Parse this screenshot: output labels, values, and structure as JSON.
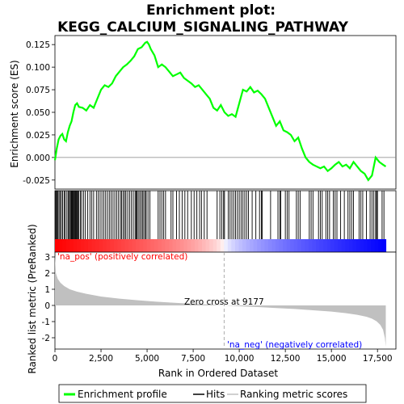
{
  "chart_data": {
    "type": "line",
    "title_line1": "Enrichment plot:",
    "title_line2": "KEGG_CALCIUM_SIGNALING_PATHWAY",
    "top_panel": {
      "ylabel": "Enrichment score (ES)",
      "ylim": [
        -0.035,
        0.135
      ],
      "yticks": [
        -0.025,
        0.0,
        0.025,
        0.05,
        0.075,
        0.1,
        0.125
      ],
      "ytick_labels": [
        "-0.025",
        "0.000",
        "0.025",
        "0.050",
        "0.075",
        "0.100",
        "0.125"
      ],
      "series": [
        {
          "name": "Enrichment profile",
          "color": "#00ff00",
          "x": [
            0,
            100,
            200,
            300,
            400,
            500,
            600,
            700,
            800,
            900,
            1000,
            1100,
            1200,
            1300,
            1500,
            1700,
            1900,
            2100,
            2300,
            2500,
            2700,
            2900,
            3100,
            3300,
            3500,
            3700,
            3900,
            4100,
            4300,
            4500,
            4700,
            4900,
            5000,
            5100,
            5200,
            5400,
            5600,
            5800,
            6000,
            6200,
            6400,
            6600,
            6800,
            7000,
            7200,
            7400,
            7600,
            7800,
            8000,
            8200,
            8400,
            8600,
            8800,
            9000,
            9200,
            9400,
            9600,
            9800,
            10000,
            10200,
            10400,
            10600,
            10800,
            11000,
            11200,
            11400,
            11600,
            11800,
            12000,
            12200,
            12400,
            12600,
            12800,
            13000,
            13200,
            13400,
            13600,
            13800,
            14000,
            14200,
            14400,
            14600,
            14800,
            15000,
            15200,
            15400,
            15600,
            15800,
            16000,
            16200,
            16400,
            16600,
            16800,
            17000,
            17200,
            17400,
            17600,
            17800,
            17950
          ],
          "y": [
            -0.003,
            0.01,
            0.02,
            0.024,
            0.026,
            0.02,
            0.018,
            0.028,
            0.035,
            0.04,
            0.05,
            0.058,
            0.06,
            0.056,
            0.055,
            0.052,
            0.058,
            0.055,
            0.065,
            0.075,
            0.08,
            0.078,
            0.082,
            0.09,
            0.095,
            0.1,
            0.103,
            0.107,
            0.112,
            0.12,
            0.122,
            0.127,
            0.128,
            0.125,
            0.12,
            0.113,
            0.1,
            0.103,
            0.1,
            0.095,
            0.09,
            0.092,
            0.094,
            0.088,
            0.085,
            0.082,
            0.078,
            0.08,
            0.075,
            0.07,
            0.065,
            0.055,
            0.052,
            0.058,
            0.05,
            0.046,
            0.048,
            0.045,
            0.06,
            0.075,
            0.073,
            0.078,
            0.072,
            0.074,
            0.07,
            0.065,
            0.055,
            0.045,
            0.035,
            0.04,
            0.03,
            0.028,
            0.025,
            0.018,
            0.022,
            0.01,
            0.0,
            -0.005,
            -0.008,
            -0.01,
            -0.012,
            -0.01,
            -0.015,
            -0.012,
            -0.008,
            -0.005,
            -0.01,
            -0.008,
            -0.012,
            -0.005,
            -0.01,
            -0.015,
            -0.018,
            -0.025,
            -0.02,
            0.0,
            -0.005,
            -0.008,
            -0.01
          ]
        }
      ]
    },
    "hits_panel": {
      "legend_name": "Hits",
      "hit_positions": [
        20,
        60,
        110,
        160,
        220,
        280,
        350,
        420,
        500,
        560,
        650,
        720,
        780,
        830,
        880,
        920,
        960,
        1000,
        1040,
        1080,
        1120,
        1160,
        1200,
        1250,
        1300,
        1380,
        1450,
        1550,
        1650,
        1780,
        1900,
        2000,
        2100,
        2250,
        2350,
        2450,
        2550,
        2650,
        2750,
        2850,
        2950,
        3050,
        3150,
        3250,
        3350,
        3450,
        3550,
        3620,
        3700,
        3780,
        3850,
        3950,
        4050,
        4150,
        4250,
        4350,
        4400,
        4450,
        4520,
        4600,
        4680,
        4750,
        4820,
        4900,
        4950,
        5050,
        5150,
        5600,
        5700,
        5800,
        5900,
        6000,
        6300,
        6400,
        6600,
        6750,
        6900,
        7050,
        7200,
        7400,
        7550,
        7700,
        7850,
        7950,
        8100,
        8250,
        8800,
        8950,
        9050,
        9150,
        9200,
        9400,
        9500,
        9600,
        9700,
        9800,
        9900,
        10000,
        10100,
        10200,
        10300,
        10400,
        10500,
        10700,
        10900,
        11100,
        11200,
        11250,
        11700,
        12100,
        12200,
        12250,
        12500,
        12600,
        12700,
        13100,
        13200,
        13300,
        13800,
        13900,
        14000,
        14300,
        14400,
        14500,
        14700,
        14800,
        14900,
        15100,
        15200,
        15300,
        15500,
        15700,
        15900,
        16000,
        16100,
        16200,
        16500,
        16600,
        16700,
        16900,
        17100,
        17200,
        17300,
        17400,
        17450,
        17500,
        17750,
        17850
      ]
    },
    "bottom_panel": {
      "ylabel": "Ranked list metric (PreRanked)",
      "xlabel": "Rank in Ordered Dataset",
      "legend_name": "Ranking metric scores",
      "ylim": [
        -2.7,
        3.3
      ],
      "yticks": [
        -2,
        -1,
        0,
        1,
        2,
        3
      ],
      "ytick_labels": [
        "-2",
        "-1",
        "0",
        "1",
        "2",
        "3"
      ],
      "xlim": [
        0,
        18500
      ],
      "xticks": [
        0,
        2500,
        5000,
        7500,
        10000,
        12500,
        15000,
        17500
      ],
      "xtick_labels": [
        "0",
        "2,500",
        "5,000",
        "7,500",
        "10,000",
        "12,500",
        "15,000",
        "17,500"
      ],
      "fill_color": "#c0c0c0",
      "metric_x": [
        0,
        50,
        150,
        300,
        500,
        800,
        1200,
        1700,
        2500,
        3500,
        4500,
        5500,
        6500,
        7500,
        8500,
        9177,
        10000,
        11000,
        12000,
        13000,
        14000,
        15000,
        15800,
        16400,
        16900,
        17200,
        17450,
        17650,
        17800,
        17900,
        17950
      ],
      "metric_y": [
        3.1,
        2.0,
        1.65,
        1.4,
        1.2,
        1.0,
        0.85,
        0.72,
        0.55,
        0.42,
        0.32,
        0.23,
        0.16,
        0.1,
        0.05,
        0.0,
        -0.05,
        -0.1,
        -0.16,
        -0.22,
        -0.3,
        -0.38,
        -0.48,
        -0.58,
        -0.7,
        -0.82,
        -0.98,
        -1.2,
        -1.5,
        -2.0,
        -2.55
      ],
      "zero_cross": 9177,
      "zero_cross_label": "Zero cross at 9177",
      "pos_label": "'na_pos' (positively correlated)",
      "neg_label": "'na_neg' (negatively correlated)",
      "pos_color": "#ff0000",
      "neg_color": "#0000ff"
    },
    "n_genes": 17950
  }
}
